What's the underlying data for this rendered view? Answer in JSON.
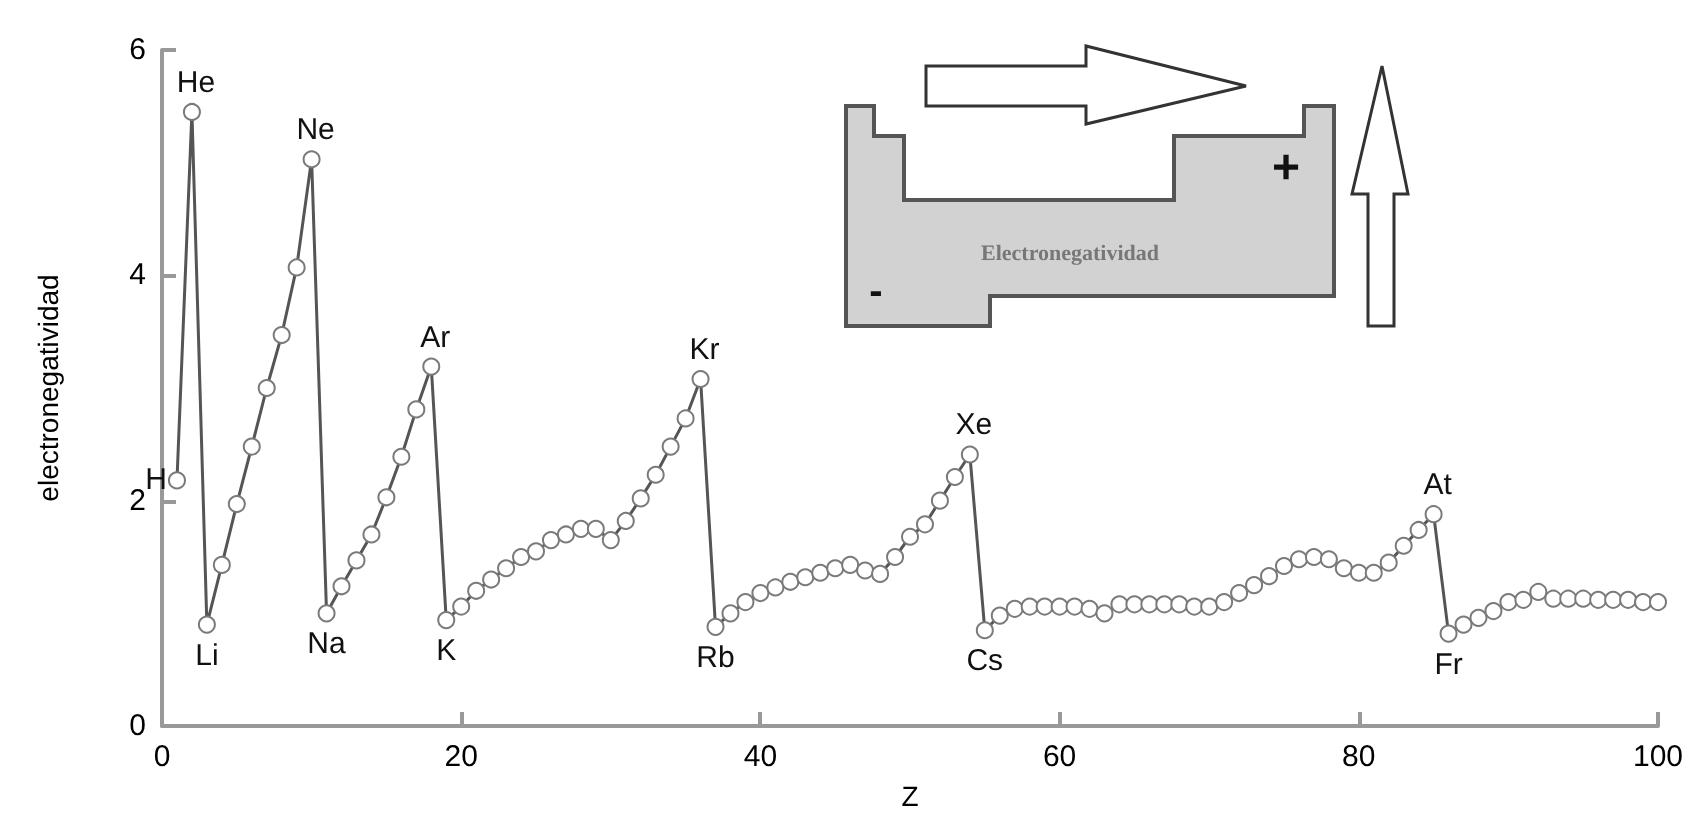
{
  "chart_data": {
    "type": "line",
    "xlabel": "Z",
    "ylabel": "electronegatividad",
    "xlim": [
      0,
      100
    ],
    "xticks": [
      0,
      20,
      40,
      60,
      80,
      100
    ],
    "ylim": [
      0,
      6
    ],
    "yticks": [
      0,
      2,
      4,
      6
    ],
    "grid": false,
    "marker": "circle",
    "line_style": "solid",
    "x": [
      1,
      2,
      3,
      4,
      5,
      6,
      7,
      8,
      9,
      10,
      11,
      12,
      13,
      14,
      15,
      16,
      17,
      18,
      19,
      20,
      21,
      22,
      23,
      24,
      25,
      26,
      27,
      28,
      29,
      30,
      31,
      32,
      33,
      34,
      35,
      36,
      37,
      38,
      39,
      40,
      41,
      42,
      43,
      44,
      45,
      46,
      47,
      48,
      49,
      50,
      51,
      52,
      53,
      54,
      55,
      56,
      57,
      58,
      59,
      60,
      61,
      62,
      63,
      64,
      65,
      66,
      67,
      68,
      69,
      70,
      71,
      72,
      73,
      74,
      75,
      76,
      77,
      78,
      79,
      80,
      81,
      82,
      83,
      84,
      85,
      86,
      87,
      88,
      89,
      90,
      91,
      92,
      93,
      94,
      95,
      96,
      97,
      98,
      99,
      100
    ],
    "series": [
      {
        "color": "#555555",
        "values": [
          2.18,
          5.45,
          0.9,
          1.43,
          1.97,
          2.48,
          3.0,
          3.47,
          4.07,
          5.03,
          1.0,
          1.24,
          1.47,
          1.7,
          2.03,
          2.39,
          2.81,
          3.19,
          0.94,
          1.06,
          1.2,
          1.3,
          1.4,
          1.5,
          1.55,
          1.65,
          1.7,
          1.75,
          1.75,
          1.65,
          1.82,
          2.02,
          2.23,
          2.48,
          2.73,
          3.08,
          0.88,
          1.0,
          1.1,
          1.18,
          1.23,
          1.28,
          1.32,
          1.36,
          1.4,
          1.43,
          1.38,
          1.35,
          1.5,
          1.68,
          1.79,
          2.0,
          2.21,
          2.41,
          0.85,
          0.98,
          1.04,
          1.06,
          1.06,
          1.06,
          1.06,
          1.04,
          1.0,
          1.08,
          1.08,
          1.08,
          1.08,
          1.08,
          1.06,
          1.06,
          1.1,
          1.18,
          1.25,
          1.33,
          1.42,
          1.48,
          1.5,
          1.48,
          1.4,
          1.36,
          1.36,
          1.45,
          1.6,
          1.74,
          1.88,
          0.82,
          0.9,
          0.96,
          1.02,
          1.1,
          1.12,
          1.19,
          1.13,
          1.13,
          1.13,
          1.12,
          1.12,
          1.12,
          1.1,
          1.1
        ]
      }
    ],
    "annotations": [
      "Electronegatividad",
      "+",
      "-",
      {
        "text": "H",
        "x": 1,
        "y": 2.18
      },
      {
        "text": "He",
        "x": 2,
        "y": 5.45
      },
      {
        "text": "Li",
        "x": 3,
        "y": 0.9
      },
      {
        "text": "Ne",
        "x": 10,
        "y": 5.03
      },
      {
        "text": "Na",
        "x": 11,
        "y": 1.0
      },
      {
        "text": "Ar",
        "x": 18,
        "y": 3.19
      },
      {
        "text": "K",
        "x": 19,
        "y": 0.94
      },
      {
        "text": "Kr",
        "x": 36,
        "y": 3.08
      },
      {
        "text": "Rb",
        "x": 37,
        "y": 0.88
      },
      {
        "text": "Xe",
        "x": 54,
        "y": 2.41
      },
      {
        "text": "Cs",
        "x": 55,
        "y": 0.85
      },
      {
        "text": "At",
        "x": 85,
        "y": 1.88
      },
      {
        "text": "Fr",
        "x": 86,
        "y": 0.82
      }
    ]
  }
}
